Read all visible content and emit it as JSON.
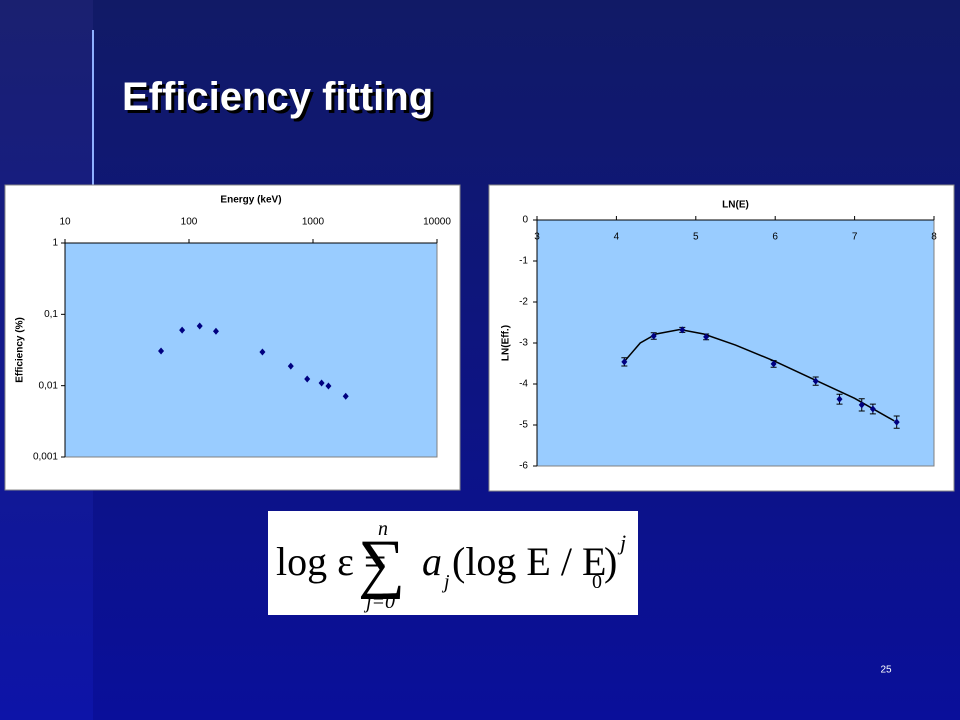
{
  "slide_title": "Efficiency fitting",
  "page_number": "25",
  "formula": {
    "lhs": "log ε =",
    "sum": "∑",
    "upper": "n",
    "lower": "j=0",
    "term": "a",
    "term_sub": "j",
    "paren": "(log E / E",
    "paren_sub": "0",
    "close": ")",
    "power": "j"
  },
  "chart_data": [
    {
      "type": "scatter",
      "x_label": "Energy (keV)",
      "y_label": "Efficiency (%)",
      "x": [
        59.5,
        88,
        122,
        165,
        391,
        662,
        898,
        1173,
        1332,
        1836
      ],
      "values": [
        0.0306,
        0.06,
        0.0686,
        0.058,
        0.0296,
        0.0188,
        0.0124,
        0.0109,
        0.0099,
        0.0071
      ],
      "color": "#000080",
      "xlog": true,
      "ylog": true,
      "xlim": [
        10,
        10000
      ],
      "xticks": [
        10,
        100,
        1000,
        10000
      ],
      "ylim": [
        0.001,
        1
      ],
      "yticks": [
        {
          "value": 0.001,
          "label": "0,001"
        },
        {
          "value": 0.01,
          "label": "0,01"
        },
        {
          "value": 0.1,
          "label": "0,1"
        },
        1
      ]
    },
    {
      "type": "line",
      "x_label": "LN(E)",
      "y_label": "LN(Eff.)",
      "x": [
        4.1,
        4.47,
        4.83,
        5.13,
        5.98,
        6.51,
        6.81,
        7.09,
        7.23,
        7.53
      ],
      "series": [
        {
          "color": "#000080",
          "values": [
            -3.46,
            -2.83,
            -2.68,
            -2.85,
            -3.51,
            -3.93,
            -4.37,
            -4.51,
            -4.61,
            -4.93
          ],
          "errors": [
            0.1,
            0.08,
            0.06,
            0.07,
            0.08,
            0.1,
            0.12,
            0.15,
            0.12,
            0.15
          ]
        }
      ],
      "fit": {
        "color": "#000000",
        "x": [
          4.1,
          4.3,
          4.5,
          4.8,
          5.1,
          5.5,
          6.0,
          6.5,
          7.0,
          7.5
        ],
        "values": [
          -3.45,
          -3.0,
          -2.78,
          -2.67,
          -2.78,
          -3.05,
          -3.45,
          -3.9,
          -4.35,
          -4.9
        ]
      },
      "xlim": [
        3,
        8
      ],
      "xticks": [
        3,
        4,
        5,
        6,
        7,
        8
      ],
      "ylim": [
        -6,
        0
      ],
      "yticks": [
        0,
        -1,
        -2,
        -3,
        -4,
        -5,
        -6
      ]
    }
  ]
}
